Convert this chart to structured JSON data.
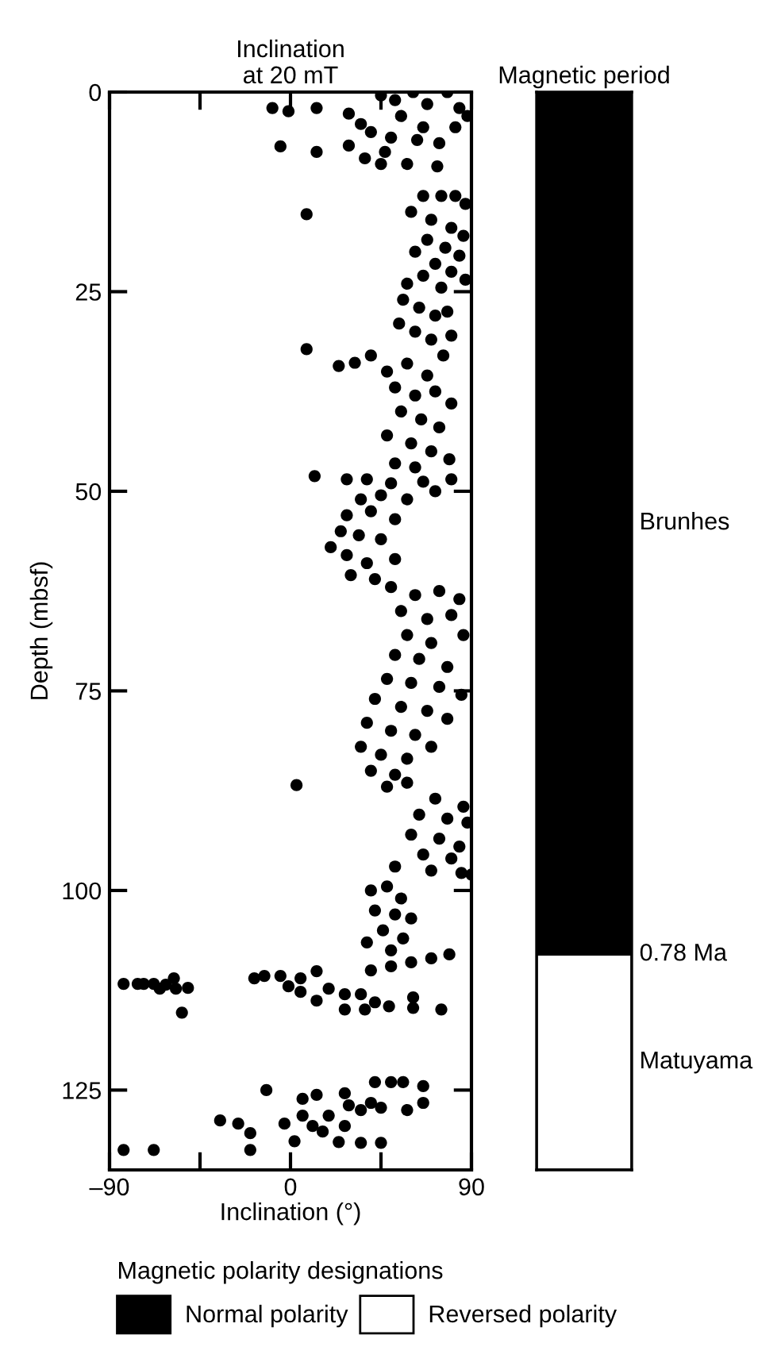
{
  "chart_data": [
    {
      "type": "scatter",
      "title": "Inclination\nat 20 mT",
      "xlabel": "Inclination (°)",
      "ylabel": "Depth (mbsf)",
      "xlim": [
        -90,
        90
      ],
      "xticks": [
        {
          "value": -90,
          "label": "–90"
        },
        {
          "value": -45,
          "label": null
        },
        0,
        {
          "value": 45,
          "label": null
        },
        90
      ],
      "ylim": [
        135,
        0
      ],
      "yticks": [
        0,
        25,
        50,
        75,
        100,
        125
      ],
      "grid": false,
      "marker": "circle",
      "series": [
        {
          "color": "#000000",
          "x": [
            -9,
            -1,
            13,
            -5,
            13,
            29,
            29,
            37,
            45,
            61,
            78,
            88,
            55,
            66,
            50,
            58,
            73,
            74,
            40,
            82,
            35,
            47,
            68,
            52,
            84,
            63,
            45,
            8,
            66,
            75,
            82,
            87,
            60,
            70,
            80,
            86,
            68,
            77,
            84,
            62,
            72,
            80,
            87,
            66,
            75,
            58,
            56,
            64,
            72,
            78,
            54,
            62,
            70,
            80,
            8,
            24,
            32,
            40,
            48,
            58,
            68,
            76,
            52,
            62,
            72,
            80,
            55,
            65,
            74,
            48,
            60,
            70,
            79,
            52,
            62,
            12,
            28,
            38,
            50,
            66,
            80,
            35,
            45,
            58,
            72,
            28,
            40,
            52,
            25,
            34,
            45,
            20,
            28,
            38,
            52,
            30,
            42,
            50,
            62,
            74,
            84,
            55,
            68,
            80,
            58,
            70,
            86,
            52,
            64,
            78,
            48,
            60,
            74,
            85,
            42,
            55,
            68,
            78,
            38,
            50,
            62,
            35,
            45,
            58,
            70,
            40,
            52,
            3,
            48,
            58,
            72,
            86,
            64,
            78,
            88,
            60,
            74,
            84,
            66,
            80,
            90,
            52,
            70,
            85,
            40,
            48,
            55,
            42,
            52,
            60,
            46,
            56,
            38,
            50,
            40,
            50,
            60,
            70,
            79,
            -83,
            -76,
            -73,
            -68,
            -65,
            -62,
            -58,
            -57,
            -51,
            -54,
            -18,
            -13,
            -5,
            -1,
            5,
            5,
            13,
            13,
            19,
            27,
            35,
            27,
            37,
            49,
            61,
            61,
            75,
            42,
            -83,
            -68,
            -20,
            -20,
            -35,
            -26,
            -12,
            -3,
            2,
            6,
            13,
            27,
            42,
            50,
            56,
            66,
            66,
            58,
            45,
            35,
            27,
            16,
            24,
            35,
            45,
            11,
            6,
            19,
            29,
            40
          ],
          "values": [
            2,
            2.4,
            2,
            6.8,
            7.5,
            2.7,
            6.7,
            8.3,
            0.4,
            0,
            0,
            3,
            3,
            4.4,
            5.7,
            9,
            9.3,
            6.4,
            5,
            4.4,
            4,
            7.5,
            1.5,
            1,
            2,
            6,
            9,
            15.3,
            13,
            13,
            13,
            14,
            15,
            16,
            17,
            18,
            18.5,
            19.5,
            20.5,
            20,
            21.5,
            22.5,
            23.5,
            23,
            24.5,
            24,
            26,
            27,
            28,
            27.5,
            29,
            30,
            31,
            30.5,
            32.2,
            34.3,
            33.9,
            33,
            35,
            34,
            35.5,
            33,
            37,
            38,
            37.5,
            39,
            40,
            41,
            42,
            43,
            44,
            45,
            46,
            46.5,
            47,
            48.1,
            48.5,
            48.5,
            49,
            48.8,
            48.5,
            51,
            50.5,
            51,
            50,
            53,
            52.5,
            53.5,
            55,
            55.5,
            56,
            57,
            58,
            59,
            58.5,
            60.5,
            61,
            62,
            63,
            62.5,
            63.5,
            65,
            66,
            65.5,
            68,
            69,
            68,
            70.5,
            71,
            72,
            73.5,
            74,
            74.5,
            75.5,
            76,
            77,
            77.5,
            78.5,
            79,
            80,
            80.5,
            82,
            83,
            83.5,
            82,
            85,
            85.5,
            86.8,
            87,
            86.5,
            88.5,
            89.5,
            90.5,
            91,
            91.5,
            93,
            93.5,
            94.5,
            95.5,
            96,
            98,
            97,
            97.5,
            97.8,
            100,
            99.5,
            101,
            102.5,
            103,
            103.5,
            105,
            106,
            106.5,
            107.5,
            110,
            109.5,
            109,
            108.5,
            108,
            111.7,
            111.7,
            111.7,
            111.7,
            112.3,
            111.8,
            111,
            112.3,
            112.2,
            115.3,
            111,
            110.7,
            110.7,
            112,
            111,
            112.7,
            110.1,
            113.8,
            112.3,
            113,
            113,
            114.9,
            114.9,
            114.5,
            113.4,
            114.7,
            114.9,
            114,
            132.5,
            132.5,
            132.5,
            130.4,
            128.8,
            129.2,
            125,
            129.2,
            131.4,
            126.1,
            125.6,
            125.4,
            124,
            124,
            124,
            124.5,
            126.6,
            127.5,
            127.2,
            127.5,
            129.5,
            130.2,
            131.5,
            131.6,
            131.6,
            129.5,
            128.2,
            128.2,
            126.9,
            126.6
          ]
        }
      ]
    },
    {
      "type": "bar",
      "title": "Magnetic period",
      "categories": [
        null
      ],
      "stacked": true,
      "ylim": [
        135,
        0
      ],
      "tick_labels": false,
      "legend": "bottom",
      "legend_title": "Magnetic polarity designations",
      "series": [
        {
          "name": "Normal polarity",
          "color": "#000000",
          "values": [
            108
          ]
        },
        {
          "name": "Reversed polarity",
          "color": "#ffffff",
          "values": [
            27
          ]
        }
      ],
      "annotations": [
        "Brunhes",
        "0.78 Ma",
        "Matuyama"
      ]
    }
  ]
}
